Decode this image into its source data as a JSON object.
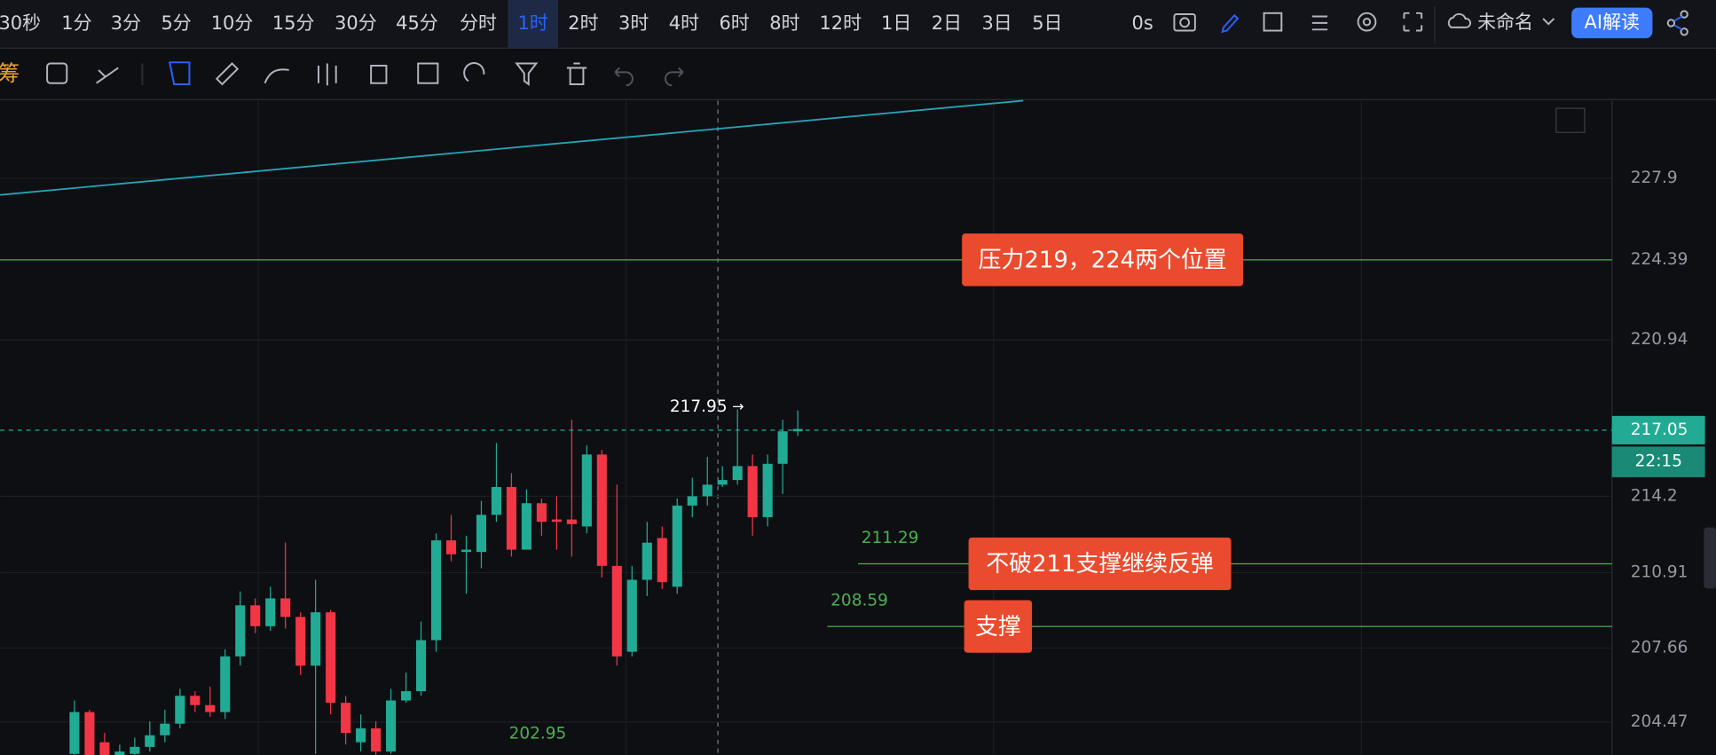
{
  "toolbar": {
    "intervals": [
      "30秒",
      "1分",
      "3分",
      "5分",
      "10分",
      "15分",
      "30分",
      "45分",
      "分时",
      "1时",
      "2时",
      "3时",
      "4时",
      "6时",
      "8时",
      "12时",
      "1日",
      "2日",
      "3日",
      "5日"
    ],
    "active": "1时",
    "timer": "0s",
    "layout_name": "未命名",
    "ai_button": "AI解读",
    "left_cut": "筹"
  },
  "chart_data": {
    "type": "candlestick",
    "ylim": [
      203.05,
      231.25
    ],
    "yticks": [
      204.47,
      207.66,
      210.91,
      214.2,
      220.94,
      224.39,
      227.9
    ],
    "open": [
      203.1,
      204.9,
      203.6,
      203.0,
      203.1,
      203.4,
      203.9,
      204.4,
      205.6,
      205.2,
      204.9,
      207.3,
      209.5,
      208.6,
      209.8,
      209.0,
      206.9,
      209.2,
      205.3,
      203.6,
      204.2,
      203.2,
      205.4,
      205.8,
      208.0,
      212.3,
      211.8,
      211.8,
      213.4,
      214.6,
      211.9,
      213.9,
      213.2,
      213.2,
      212.9,
      216.0,
      211.2,
      207.5,
      210.6,
      212.4,
      210.3,
      213.8,
      214.2,
      214.7,
      214.9,
      215.5,
      213.3,
      215.6,
      217.0
    ],
    "high": [
      205.4,
      205.0,
      204.0,
      203.5,
      203.8,
      204.5,
      205.0,
      205.9,
      205.8,
      206.0,
      207.6,
      210.1,
      209.8,
      210.3,
      212.2,
      209.2,
      210.6,
      209.3,
      205.6,
      204.8,
      204.5,
      205.9,
      206.6,
      208.8,
      212.6,
      213.4,
      212.5,
      214.0,
      216.5,
      215.2,
      214.5,
      214.1,
      214.2,
      217.5,
      216.4,
      216.2,
      214.7,
      211.2,
      213.1,
      212.9,
      214.1,
      215.0,
      215.9,
      215.5,
      217.95,
      216.0,
      216.0,
      217.5,
      217.9
    ],
    "low": [
      203.0,
      203.0,
      203.0,
      203.0,
      203.0,
      203.2,
      203.6,
      204.2,
      204.9,
      204.7,
      204.6,
      206.9,
      208.3,
      208.4,
      208.5,
      206.5,
      203.1,
      204.8,
      203.5,
      203.2,
      203.0,
      203.1,
      205.3,
      205.6,
      207.5,
      211.4,
      210.0,
      211.1,
      213.1,
      211.6,
      211.9,
      212.5,
      211.9,
      211.6,
      212.6,
      210.7,
      206.9,
      207.3,
      209.9,
      210.2,
      210.0,
      213.3,
      213.8,
      214.6,
      214.7,
      212.5,
      212.9,
      214.3,
      216.8
    ],
    "close": [
      204.9,
      203.0,
      203.0,
      203.2,
      203.4,
      203.9,
      204.4,
      205.6,
      205.2,
      204.9,
      207.3,
      209.5,
      208.6,
      209.8,
      209.0,
      206.9,
      209.2,
      205.3,
      204.0,
      204.2,
      203.2,
      205.4,
      205.8,
      208.0,
      212.3,
      211.7,
      211.9,
      213.4,
      214.6,
      211.9,
      213.9,
      213.1,
      213.1,
      213.0,
      216.0,
      211.2,
      207.3,
      210.6,
      212.2,
      210.5,
      213.8,
      214.2,
      214.7,
      214.9,
      215.5,
      213.3,
      215.6,
      217.0,
      217.1
    ],
    "up_color": "#22ab94",
    "down_color": "#f23645",
    "high_marker": 217.95,
    "low_marker": 202.95,
    "last_price": 217.05,
    "countdown": "22:15",
    "moving_average": {
      "color": "#26a3b5",
      "values": [
        227.19,
        231.25
      ]
    },
    "levels": [
      {
        "value": 224.39,
        "note": "压力219，224两个位置"
      },
      {
        "value": 211.29,
        "note": "不破211支撑继续反弹"
      },
      {
        "value": 208.59,
        "note": "支撑"
      }
    ]
  }
}
